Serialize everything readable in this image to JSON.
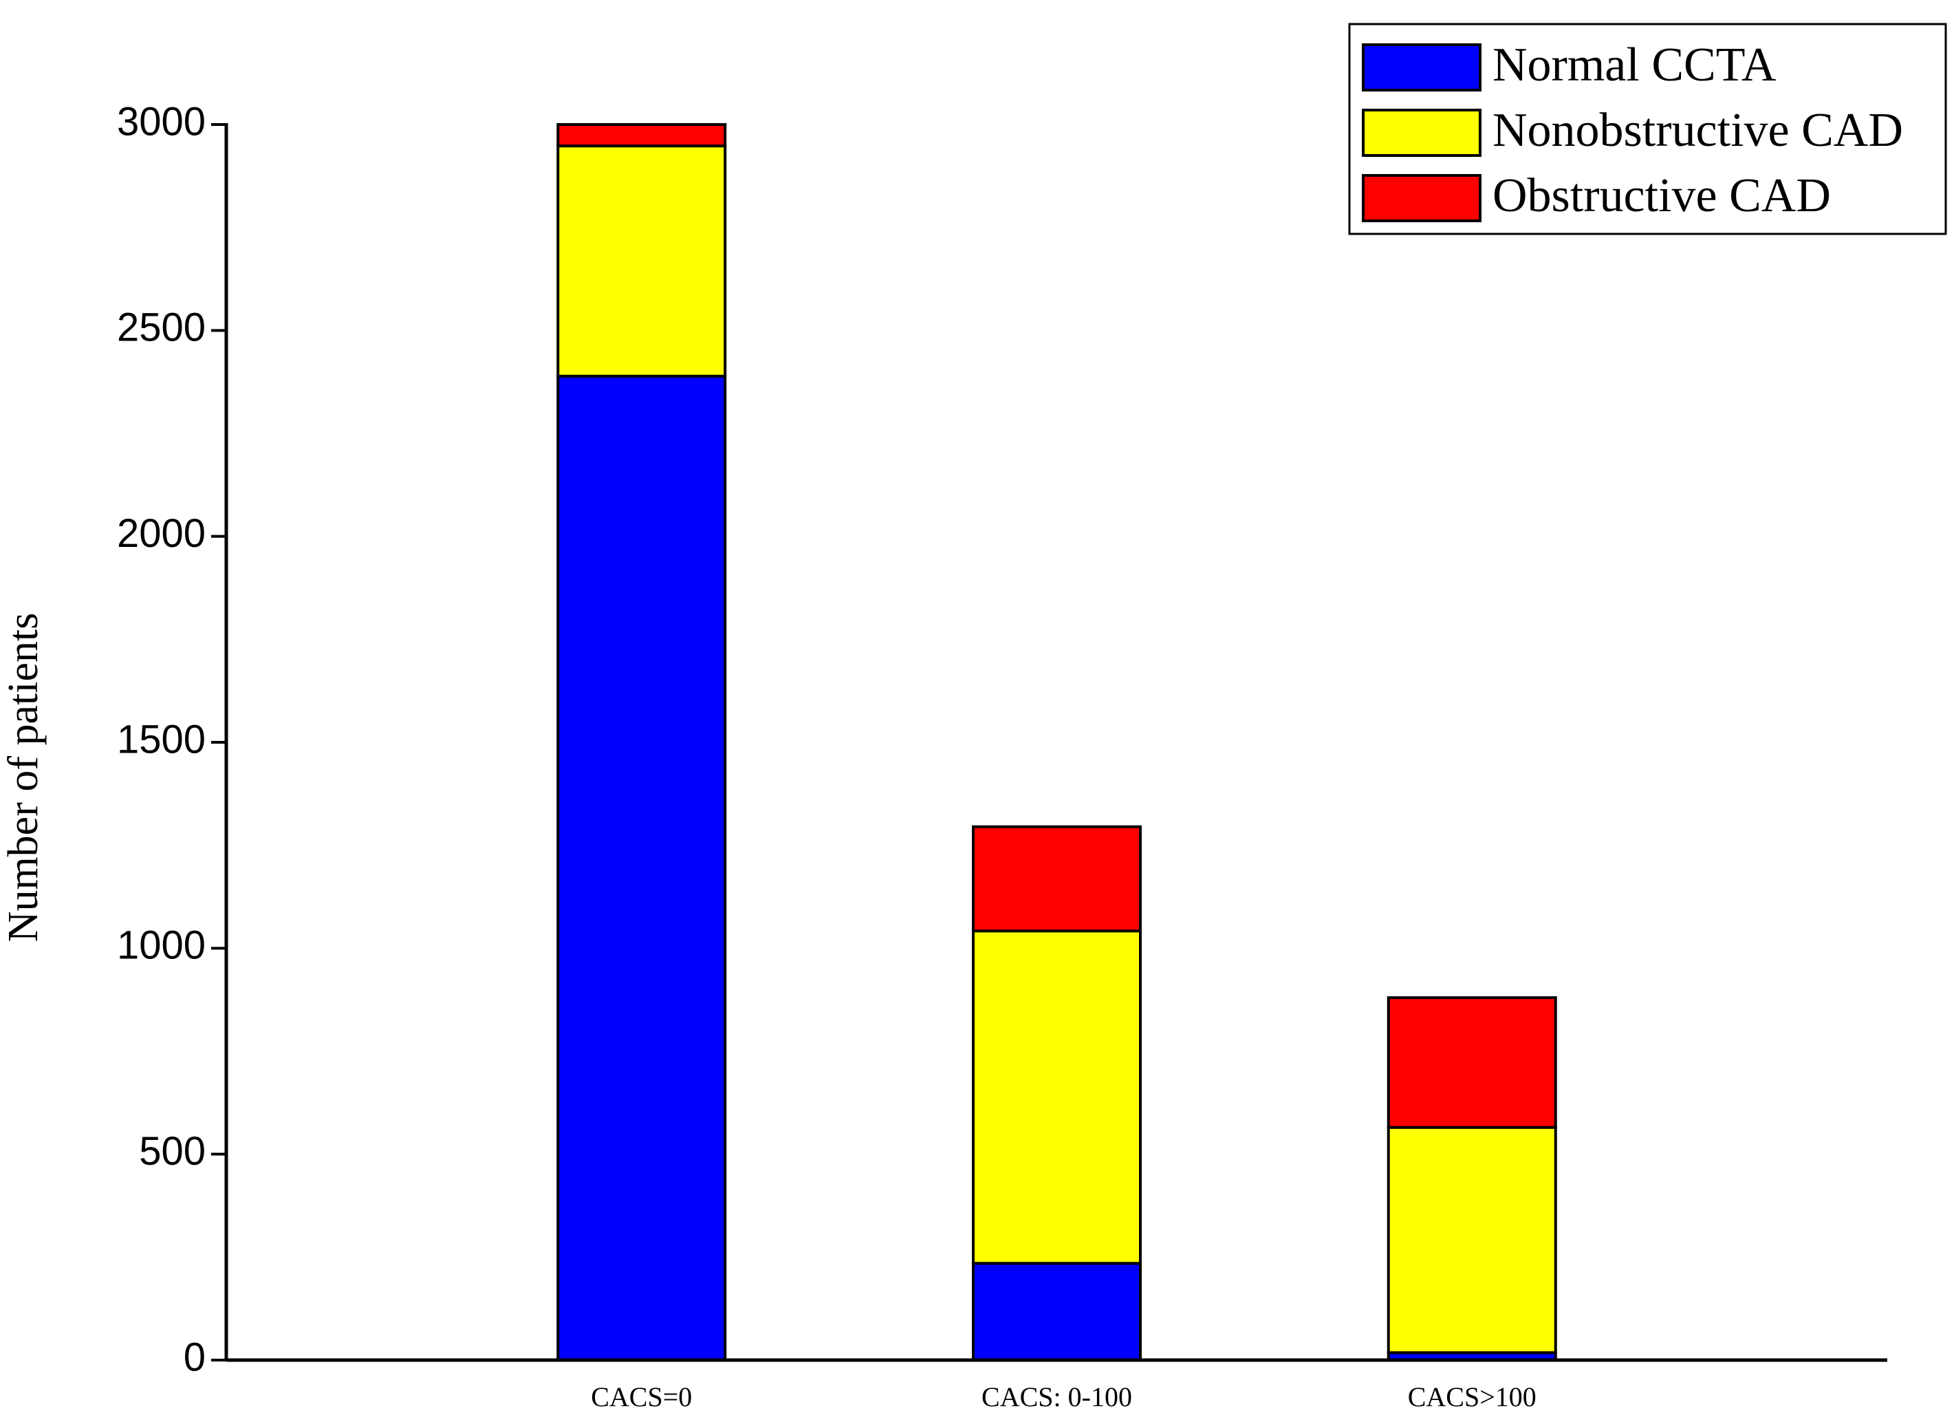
{
  "chart_data": {
    "type": "stacked_bar",
    "y_label": "Number of patients",
    "categories": [
      "CACS=0",
      "CACS: 0-100",
      "CACS>100"
    ],
    "series": [
      {
        "name": "Normal CCTA",
        "color": "#0000ff",
        "values": [
          2389,
          235,
          18
        ]
      },
      {
        "name": "Nonobstructive CAD",
        "color": "#ffff00",
        "values": [
          559,
          807,
          547
        ]
      },
      {
        "name": "Obstructive CAD",
        "color": "#ff0000",
        "values": [
          52,
          253,
          315
        ]
      }
    ],
    "ylim": [
      0,
      3000
    ],
    "yticks": [
      0,
      500,
      1000,
      1500,
      2000,
      2500,
      3000
    ],
    "legend": "upper right"
  }
}
